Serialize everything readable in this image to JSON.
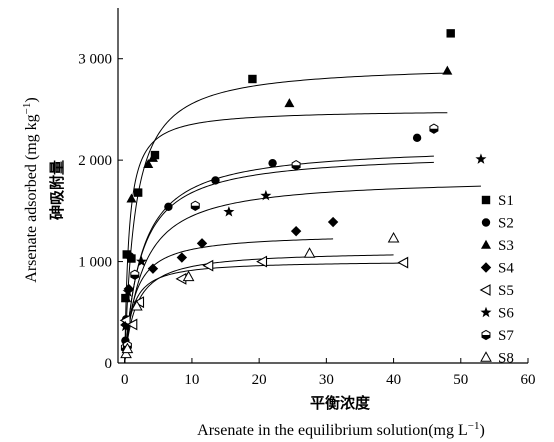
{
  "chart_data": {
    "type": "scatter",
    "xlabel_cn": "平衡浓度",
    "xlabel": "Arsenate in the equilibrium solution(mg L",
    "xlabel_sup": "−1",
    "xlabel_end": ")",
    "ylabel_cn": "砷吸附量",
    "ylabel": "Arsenate adsorbed (mg kg",
    "ylabel_sup": "−1",
    "ylabel_end": ")",
    "xlim": [
      -1,
      60
    ],
    "ylim": [
      0,
      3500
    ],
    "x_ticks": [
      0,
      10,
      20,
      30,
      40,
      50,
      60
    ],
    "y_ticks": [
      0,
      1000,
      2000,
      3000
    ],
    "y_tick_labels": [
      "0",
      "1 000",
      "2 000",
      "3 000"
    ],
    "legend_position": "right",
    "series": [
      {
        "name": "S1",
        "marker": "square",
        "points": [
          [
            0.1,
            640
          ],
          [
            0.3,
            1070
          ],
          [
            1.0,
            1030
          ],
          [
            2.0,
            1680
          ],
          [
            4.5,
            2050
          ],
          [
            19,
            2800
          ],
          [
            48.5,
            3250
          ]
        ],
        "fit": {
          "qmax": 2500,
          "k": 1.6,
          "x_end": 48
        }
      },
      {
        "name": "S2",
        "marker": "circle",
        "points": [
          [
            0.1,
            220
          ],
          [
            0.2,
            430
          ],
          [
            0.8,
            1050
          ],
          [
            6.5,
            1540
          ],
          [
            13.5,
            1800
          ],
          [
            22,
            1970
          ],
          [
            43.5,
            2220
          ]
        ],
        "fit": {
          "qmax": 2150,
          "k": 0.4,
          "x_end": 46
        }
      },
      {
        "name": "S3",
        "marker": "triangle",
        "points": [
          [
            0.2,
            640
          ],
          [
            1.0,
            1620
          ],
          [
            3.5,
            1960
          ],
          [
            4.2,
            2020
          ],
          [
            24.5,
            2560
          ],
          [
            48,
            2880
          ]
        ],
        "fit": {
          "qmax": 2950,
          "k": 0.65,
          "x_end": 48
        }
      },
      {
        "name": "S4",
        "marker": "diamond",
        "points": [
          [
            0.2,
            380
          ],
          [
            0.6,
            730
          ],
          [
            4.2,
            930
          ],
          [
            8.5,
            1040
          ],
          [
            11.5,
            1180
          ],
          [
            25.5,
            1300
          ],
          [
            31,
            1390
          ]
        ],
        "fit": {
          "qmax": 1280,
          "k": 0.7,
          "x_end": 31
        }
      },
      {
        "name": "S5",
        "marker": "triangle-left",
        "points": [
          [
            0.2,
            420
          ],
          [
            1.2,
            380
          ],
          [
            2.2,
            600
          ],
          [
            8.5,
            830
          ],
          [
            12.5,
            960
          ],
          [
            20.5,
            1000
          ],
          [
            41.5,
            990
          ]
        ],
        "fit": {
          "qmax": 1010,
          "k": 0.95,
          "x_end": 42
        }
      },
      {
        "name": "S6",
        "marker": "star",
        "points": [
          [
            0.1,
            360
          ],
          [
            0.5,
            700
          ],
          [
            2.5,
            1000
          ],
          [
            15.5,
            1490
          ],
          [
            21,
            1650
          ],
          [
            53,
            2010
          ]
        ],
        "fit": {
          "qmax": 1830,
          "k": 0.38,
          "x_end": 53
        }
      },
      {
        "name": "S7",
        "marker": "hexagon",
        "points": [
          [
            0.1,
            150
          ],
          [
            0.4,
            170
          ],
          [
            1.5,
            870
          ],
          [
            10.5,
            1550
          ],
          [
            25.5,
            1950
          ],
          [
            46,
            2310
          ]
        ],
        "fit": {
          "qmax": 2080,
          "k": 0.42,
          "x_end": 46
        }
      },
      {
        "name": "S8",
        "marker": "triangle-open",
        "points": [
          [
            0.2,
            90
          ],
          [
            0.4,
            140
          ],
          [
            1.8,
            560
          ],
          [
            9.5,
            850
          ],
          [
            27.5,
            1080
          ],
          [
            40,
            1230
          ]
        ],
        "fit": {
          "qmax": 1110,
          "k": 0.6,
          "x_end": 40
        }
      }
    ]
  }
}
